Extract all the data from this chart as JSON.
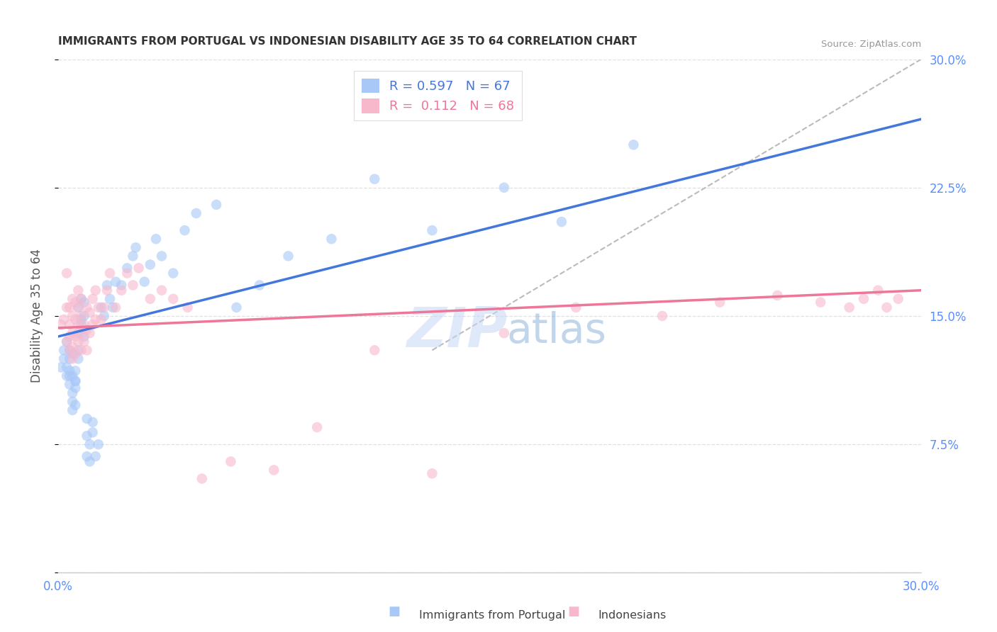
{
  "title": "IMMIGRANTS FROM PORTUGAL VS INDONESIAN DISABILITY AGE 35 TO 64 CORRELATION CHART",
  "source": "Source: ZipAtlas.com",
  "ylabel_label": "Disability Age 35 to 64",
  "ylabel_ticks": [
    0.0,
    0.075,
    0.15,
    0.225,
    0.3
  ],
  "ylabel_tick_labels": [
    "",
    "7.5%",
    "15.0%",
    "22.5%",
    "30.0%"
  ],
  "xlim": [
    0.0,
    0.3
  ],
  "ylim": [
    0.0,
    0.3
  ],
  "legend_entries": [
    {
      "label": "R = 0.597   N = 67",
      "color": "#a8c8f8"
    },
    {
      "label": "R =  0.112   N = 68",
      "color": "#f8b8cc"
    }
  ],
  "watermark_zip": "ZIP",
  "watermark_atlas": "atlas",
  "title_color": "#333333",
  "source_color": "#999999",
  "axis_label_color": "#555555",
  "tick_color": "#5b8ff9",
  "grid_color": "#e0e0e0",
  "blue_scatter_color": "#a8c8f8",
  "pink_scatter_color": "#f8b8cc",
  "blue_line_color": "#4477dd",
  "pink_line_color": "#ee7799",
  "diag_line_color": "#bbbbbb",
  "blue_pts_x": [
    0.001,
    0.002,
    0.002,
    0.003,
    0.003,
    0.003,
    0.004,
    0.004,
    0.004,
    0.004,
    0.004,
    0.005,
    0.005,
    0.005,
    0.005,
    0.005,
    0.006,
    0.006,
    0.006,
    0.006,
    0.006,
    0.007,
    0.007,
    0.007,
    0.007,
    0.008,
    0.008,
    0.008,
    0.009,
    0.009,
    0.009,
    0.01,
    0.01,
    0.01,
    0.011,
    0.011,
    0.012,
    0.012,
    0.013,
    0.014,
    0.015,
    0.016,
    0.017,
    0.018,
    0.019,
    0.02,
    0.022,
    0.024,
    0.026,
    0.027,
    0.03,
    0.032,
    0.034,
    0.036,
    0.04,
    0.044,
    0.048,
    0.055,
    0.062,
    0.07,
    0.08,
    0.095,
    0.11,
    0.13,
    0.155,
    0.175,
    0.2
  ],
  "blue_pts_y": [
    0.12,
    0.125,
    0.13,
    0.135,
    0.115,
    0.12,
    0.13,
    0.11,
    0.118,
    0.125,
    0.115,
    0.128,
    0.095,
    0.105,
    0.115,
    0.1,
    0.112,
    0.098,
    0.108,
    0.118,
    0.112,
    0.125,
    0.13,
    0.14,
    0.155,
    0.148,
    0.16,
    0.145,
    0.138,
    0.15,
    0.158,
    0.068,
    0.08,
    0.09,
    0.065,
    0.075,
    0.082,
    0.088,
    0.068,
    0.075,
    0.155,
    0.15,
    0.168,
    0.16,
    0.155,
    0.17,
    0.168,
    0.178,
    0.185,
    0.19,
    0.17,
    0.18,
    0.195,
    0.185,
    0.175,
    0.2,
    0.21,
    0.215,
    0.155,
    0.168,
    0.185,
    0.195,
    0.23,
    0.2,
    0.225,
    0.205,
    0.25
  ],
  "pink_pts_x": [
    0.001,
    0.002,
    0.003,
    0.003,
    0.003,
    0.004,
    0.004,
    0.004,
    0.004,
    0.005,
    0.005,
    0.005,
    0.005,
    0.005,
    0.006,
    0.006,
    0.006,
    0.006,
    0.007,
    0.007,
    0.007,
    0.007,
    0.008,
    0.008,
    0.008,
    0.008,
    0.009,
    0.009,
    0.01,
    0.01,
    0.01,
    0.011,
    0.011,
    0.012,
    0.012,
    0.013,
    0.013,
    0.014,
    0.015,
    0.016,
    0.017,
    0.018,
    0.02,
    0.022,
    0.024,
    0.026,
    0.028,
    0.032,
    0.036,
    0.04,
    0.045,
    0.05,
    0.06,
    0.075,
    0.09,
    0.11,
    0.13,
    0.155,
    0.18,
    0.21,
    0.23,
    0.25,
    0.265,
    0.275,
    0.28,
    0.285,
    0.288,
    0.292
  ],
  "pink_pts_y": [
    0.145,
    0.148,
    0.135,
    0.155,
    0.175,
    0.13,
    0.138,
    0.145,
    0.155,
    0.125,
    0.132,
    0.14,
    0.15,
    0.16,
    0.128,
    0.138,
    0.148,
    0.158,
    0.135,
    0.145,
    0.155,
    0.165,
    0.13,
    0.14,
    0.15,
    0.16,
    0.135,
    0.145,
    0.13,
    0.142,
    0.155,
    0.14,
    0.152,
    0.145,
    0.16,
    0.148,
    0.165,
    0.155,
    0.148,
    0.155,
    0.165,
    0.175,
    0.155,
    0.165,
    0.175,
    0.168,
    0.178,
    0.16,
    0.165,
    0.16,
    0.155,
    0.055,
    0.065,
    0.06,
    0.085,
    0.13,
    0.058,
    0.14,
    0.155,
    0.15,
    0.158,
    0.162,
    0.158,
    0.155,
    0.16,
    0.165,
    0.155,
    0.16
  ],
  "blue_line_x": [
    0.0,
    0.3
  ],
  "blue_line_y": [
    0.138,
    0.265
  ],
  "pink_line_x": [
    0.0,
    0.3
  ],
  "pink_line_y": [
    0.143,
    0.165
  ],
  "diag_line_x": [
    0.13,
    0.3
  ],
  "diag_line_y": [
    0.13,
    0.3
  ]
}
